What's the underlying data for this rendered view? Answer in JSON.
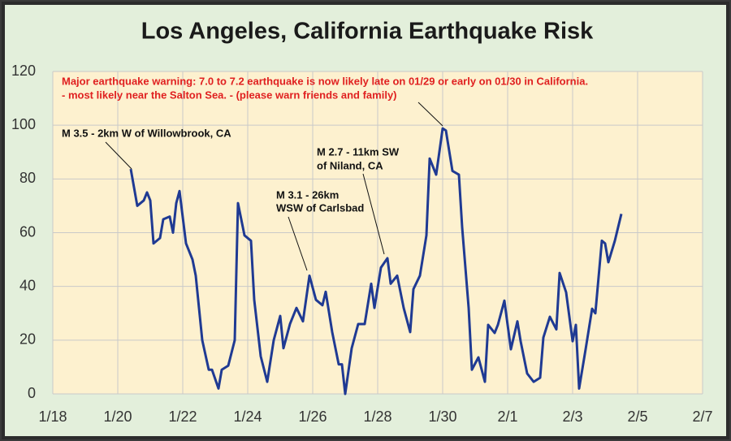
{
  "chart_data": {
    "type": "line",
    "title": "Los Angeles, California Earthquake Risk",
    "xlim": [
      0,
      20
    ],
    "xticks": [
      {
        "value": 0,
        "label": "1/18"
      },
      {
        "value": 2,
        "label": "1/20"
      },
      {
        "value": 4,
        "label": "1/22"
      },
      {
        "value": 6,
        "label": "1/24"
      },
      {
        "value": 8,
        "label": "1/26"
      },
      {
        "value": 10,
        "label": "1/28"
      },
      {
        "value": 12,
        "label": "1/30"
      },
      {
        "value": 14,
        "label": "2/1"
      },
      {
        "value": 16,
        "label": "2/3"
      },
      {
        "value": 18,
        "label": "2/5"
      },
      {
        "value": 20,
        "label": "2/7"
      }
    ],
    "ylim": [
      0,
      120
    ],
    "yticks": [
      0,
      20,
      40,
      60,
      80,
      100,
      120
    ],
    "grid": true,
    "series": [
      {
        "color": "#1f3a93",
        "x": [
          2.4,
          2.6,
          2.8,
          2.9,
          3.0,
          3.1,
          3.3,
          3.4,
          3.6,
          3.7,
          3.8,
          3.9,
          4.1,
          4.3,
          4.4,
          4.6,
          4.8,
          4.9,
          5.1,
          5.2,
          5.4,
          5.6,
          5.7,
          5.9,
          6.1,
          6.2,
          6.4,
          6.6,
          6.8,
          7.0,
          7.1,
          7.3,
          7.5,
          7.7,
          7.9,
          8.1,
          8.3,
          8.4,
          8.6,
          8.8,
          8.9,
          9.0,
          9.2,
          9.4,
          9.6,
          9.8,
          9.9,
          10.1,
          10.3,
          10.4,
          10.6,
          10.8,
          11.0,
          11.1,
          11.3,
          11.5,
          11.6,
          11.8,
          12.0,
          12.1,
          12.3,
          12.5,
          12.6,
          12.8,
          12.9,
          13.1,
          13.3,
          13.4,
          13.6,
          13.7,
          13.9,
          14.1,
          14.3,
          14.4,
          14.6,
          14.8,
          15.0,
          15.1,
          15.3,
          15.5,
          15.6,
          15.8,
          16.0,
          16.1,
          16.2,
          16.4,
          16.6,
          16.7,
          16.9,
          17.0,
          17.1,
          17.3,
          17.4,
          17.5
        ],
        "values": [
          83.7,
          70,
          72,
          75,
          72,
          56,
          58,
          65,
          66,
          60,
          71,
          75.5,
          56,
          50,
          44,
          20,
          9,
          9,
          2,
          9,
          10.5,
          20,
          71,
          59,
          57,
          35,
          14,
          4.5,
          20,
          29,
          17,
          26,
          32,
          27,
          44,
          35,
          33,
          38,
          23,
          11,
          11,
          0,
          17,
          26,
          26,
          41,
          32,
          47,
          50.5,
          41,
          44,
          32,
          23,
          39,
          44,
          59,
          87.6,
          81.6,
          98.8,
          98,
          83,
          81.6,
          62,
          32,
          9,
          13.6,
          4.5,
          25.7,
          22.7,
          25.7,
          34.7,
          16.6,
          27,
          19.6,
          7.6,
          4.5,
          6,
          21,
          28.7,
          24,
          45,
          37.8,
          19.6,
          25.7,
          2,
          16.6,
          31.7,
          30,
          57,
          56,
          49,
          57,
          62,
          67
        ]
      }
    ],
    "warning": [
      "Major earthquake warning: 7.0  to 7.2 earthquake is now likely late on 01/29 or early on 01/30 in California.",
      "- most likely near the Salton Sea. - (please warn friends and family)"
    ],
    "annotations": [
      {
        "lines": [
          "M 3.5 - 2km W of Willowbrook, CA"
        ]
      },
      {
        "lines": [
          "M 3.1 - 26km",
          "WSW of Carlsbad"
        ]
      },
      {
        "lines": [
          "M 2.7 - 11km SW",
          "of Niland, CA"
        ]
      }
    ]
  }
}
